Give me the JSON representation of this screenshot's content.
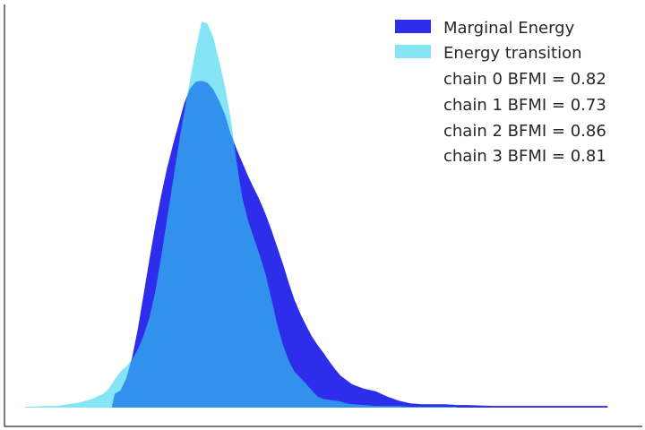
{
  "chart_data": {
    "type": "area",
    "title": "",
    "xlabel": "",
    "ylabel": "",
    "xlim": [
      -4,
      7
    ],
    "ylim": [
      0,
      0.47
    ],
    "grid": false,
    "legend_placement": "top-right",
    "series": [
      {
        "name": "Marginal Energy",
        "color": "#2d2deb",
        "opacity": 1,
        "x": [
          -2.15,
          -2.1,
          -2.0,
          -1.9,
          -1.8,
          -1.7,
          -1.6,
          -1.5,
          -1.4,
          -1.3,
          -1.2,
          -1.1,
          -1.0,
          -0.9,
          -0.8,
          -0.7,
          -0.6,
          -0.5,
          -0.4,
          -0.3,
          -0.2,
          -0.1,
          0.0,
          0.1,
          0.2,
          0.3,
          0.4,
          0.5,
          0.6,
          0.7,
          0.8,
          0.9,
          1.0,
          1.1,
          1.2,
          1.3,
          1.4,
          1.5,
          1.6,
          1.7,
          1.8,
          1.9,
          2.0,
          2.2,
          2.4,
          2.6,
          2.8,
          3.0,
          3.2,
          3.4,
          3.6,
          3.8,
          4.0,
          4.4,
          4.8,
          5.2,
          5.6,
          6.0,
          6.4
        ],
        "y": [
          0.0,
          0.016,
          0.02,
          0.034,
          0.058,
          0.092,
          0.132,
          0.173,
          0.212,
          0.247,
          0.278,
          0.305,
          0.33,
          0.355,
          0.372,
          0.38,
          0.381,
          0.379,
          0.371,
          0.358,
          0.342,
          0.32,
          0.302,
          0.286,
          0.27,
          0.256,
          0.242,
          0.226,
          0.208,
          0.188,
          0.168,
          0.146,
          0.126,
          0.11,
          0.096,
          0.083,
          0.073,
          0.064,
          0.054,
          0.045,
          0.037,
          0.032,
          0.027,
          0.022,
          0.019,
          0.013,
          0.008,
          0.005,
          0.004,
          0.004,
          0.004,
          0.003,
          0.003,
          0.002,
          0.002,
          0.002,
          0.002,
          0.002,
          0.002
        ]
      },
      {
        "name": "Energy transition",
        "color": "#35d4ee",
        "opacity": 0.6,
        "x": [
          -3.65,
          -3.5,
          -3.3,
          -3.1,
          -2.9,
          -2.7,
          -2.5,
          -2.3,
          -2.2,
          -2.1,
          -2.0,
          -1.9,
          -1.8,
          -1.7,
          -1.6,
          -1.5,
          -1.4,
          -1.3,
          -1.2,
          -1.1,
          -1.0,
          -0.9,
          -0.8,
          -0.7,
          -0.6,
          -0.5,
          -0.4,
          -0.3,
          -0.2,
          -0.1,
          0.0,
          0.1,
          0.2,
          0.3,
          0.4,
          0.5,
          0.6,
          0.7,
          0.8,
          0.9,
          1.0,
          1.1,
          1.2,
          1.3,
          1.4,
          1.5,
          1.6,
          1.7,
          1.8,
          1.9,
          2.0,
          2.2,
          2.4,
          2.6,
          2.8,
          3.0,
          3.2,
          3.4,
          3.6,
          3.8
        ],
        "y": [
          0.001,
          0.001,
          0.002,
          0.002,
          0.004,
          0.006,
          0.01,
          0.016,
          0.022,
          0.033,
          0.042,
          0.048,
          0.056,
          0.068,
          0.084,
          0.105,
          0.135,
          0.175,
          0.218,
          0.262,
          0.305,
          0.345,
          0.382,
          0.418,
          0.45,
          0.448,
          0.432,
          0.405,
          0.375,
          0.338,
          0.288,
          0.245,
          0.218,
          0.198,
          0.178,
          0.156,
          0.128,
          0.098,
          0.074,
          0.055,
          0.042,
          0.035,
          0.028,
          0.02,
          0.013,
          0.01,
          0.009,
          0.008,
          0.007,
          0.005,
          0.004,
          0.003,
          0.002,
          0.002,
          0.002,
          0.001,
          0.001,
          0.001,
          0.001,
          0.001
        ]
      }
    ],
    "annotations": [
      "chain  0 BFMI = 0.82",
      "chain  1 BFMI = 0.73",
      "chain  2 BFMI = 0.86",
      "chain  3 BFMI = 0.81"
    ]
  }
}
